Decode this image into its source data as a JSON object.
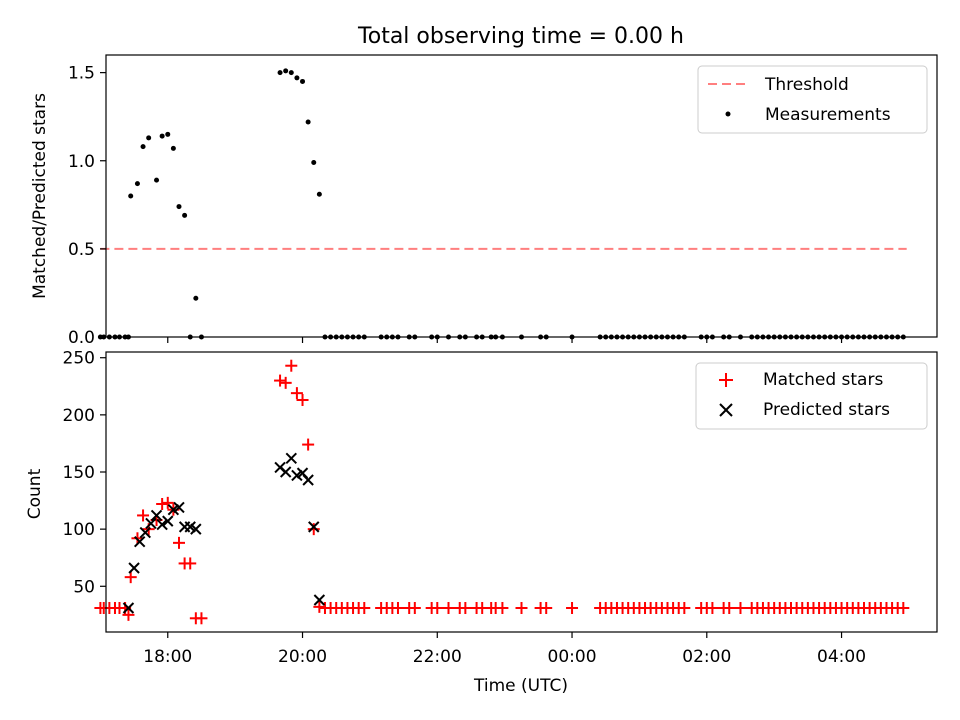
{
  "chart_data": [
    {
      "type": "scatter",
      "title": "Total observing time = 0.00 h",
      "ylabel": "Matched/Predicted stars",
      "xlabel": "",
      "ylim": [
        0,
        1.6
      ],
      "yticks": [
        "0.0",
        "0.5",
        "1.0",
        "1.5"
      ],
      "xlim": [
        "17:05",
        "05:25"
      ],
      "xticks": [
        "18:00",
        "20:00",
        "22:00",
        "00:00",
        "02:00",
        "04:00"
      ],
      "grid": false,
      "legend_position": "top-right",
      "legend": [
        "Threshold",
        "Measurements"
      ],
      "threshold": {
        "name": "Threshold",
        "y": 0.5,
        "x_start": "17:00",
        "x_end": "04:58",
        "style": "dashed",
        "color": "#ff7f7f"
      },
      "series": [
        {
          "name": "Measurements",
          "marker": "dot",
          "color": "#000000",
          "points": [
            [
              "17:00",
              0
            ],
            [
              "17:03",
              0
            ],
            [
              "17:08",
              0
            ],
            [
              "17:13",
              0
            ],
            [
              "17:17",
              0
            ],
            [
              "17:22",
              0
            ],
            [
              "17:25",
              0
            ],
            [
              "17:27",
              0.8
            ],
            [
              "17:33",
              0.87
            ],
            [
              "17:38",
              1.08
            ],
            [
              "17:43",
              1.13
            ],
            [
              "17:50",
              0.89
            ],
            [
              "17:55",
              1.14
            ],
            [
              "18:00",
              1.15
            ],
            [
              "18:05",
              1.07
            ],
            [
              "18:10",
              0.74
            ],
            [
              "18:15",
              0.69
            ],
            [
              "18:20",
              0
            ],
            [
              "18:25",
              0.22
            ],
            [
              "18:30",
              0
            ],
            [
              "19:40",
              1.5
            ],
            [
              "19:45",
              1.51
            ],
            [
              "19:50",
              1.5
            ],
            [
              "19:55",
              1.47
            ],
            [
              "20:00",
              1.45
            ],
            [
              "20:05",
              1.22
            ],
            [
              "20:10",
              0.99
            ],
            [
              "20:15",
              0.81
            ],
            [
              "20:20",
              0
            ],
            [
              "20:25",
              0
            ],
            [
              "20:30",
              0
            ],
            [
              "20:35",
              0
            ],
            [
              "20:40",
              0
            ],
            [
              "20:45",
              0
            ],
            [
              "20:50",
              0
            ],
            [
              "20:55",
              0
            ],
            [
              "21:10",
              0
            ],
            [
              "21:15",
              0
            ],
            [
              "21:20",
              0
            ],
            [
              "21:25",
              0
            ],
            [
              "21:35",
              0
            ],
            [
              "21:40",
              0
            ],
            [
              "21:55",
              0
            ],
            [
              "22:00",
              0
            ],
            [
              "22:10",
              0
            ],
            [
              "22:20",
              0
            ],
            [
              "22:25",
              0
            ],
            [
              "22:35",
              0
            ],
            [
              "22:40",
              0
            ],
            [
              "22:48",
              0
            ],
            [
              "22:52",
              0
            ],
            [
              "22:58",
              0
            ],
            [
              "23:15",
              0
            ],
            [
              "23:32",
              0
            ],
            [
              "23:37",
              0
            ],
            [
              "00:00",
              0
            ],
            [
              "00:25",
              0
            ],
            [
              "00:30",
              0
            ],
            [
              "00:35",
              0
            ],
            [
              "00:40",
              0
            ],
            [
              "00:45",
              0
            ],
            [
              "00:50",
              0
            ],
            [
              "00:55",
              0
            ],
            [
              "01:00",
              0
            ],
            [
              "01:05",
              0
            ],
            [
              "01:10",
              0
            ],
            [
              "01:15",
              0
            ],
            [
              "01:20",
              0
            ],
            [
              "01:25",
              0
            ],
            [
              "01:30",
              0
            ],
            [
              "01:35",
              0
            ],
            [
              "01:40",
              0
            ],
            [
              "01:55",
              0
            ],
            [
              "02:00",
              0
            ],
            [
              "02:05",
              0
            ],
            [
              "02:15",
              0
            ],
            [
              "02:20",
              0
            ],
            [
              "02:30",
              0
            ],
            [
              "02:40",
              0
            ],
            [
              "02:45",
              0
            ],
            [
              "02:50",
              0
            ],
            [
              "02:55",
              0
            ],
            [
              "03:00",
              0
            ],
            [
              "03:05",
              0
            ],
            [
              "03:10",
              0
            ],
            [
              "03:15",
              0
            ],
            [
              "03:20",
              0
            ],
            [
              "03:25",
              0
            ],
            [
              "03:30",
              0
            ],
            [
              "03:35",
              0
            ],
            [
              "03:40",
              0
            ],
            [
              "03:45",
              0
            ],
            [
              "03:50",
              0
            ],
            [
              "03:55",
              0
            ],
            [
              "04:00",
              0
            ],
            [
              "04:05",
              0
            ],
            [
              "04:10",
              0
            ],
            [
              "04:15",
              0
            ],
            [
              "04:20",
              0
            ],
            [
              "04:25",
              0
            ],
            [
              "04:30",
              0
            ],
            [
              "04:35",
              0
            ],
            [
              "04:40",
              0
            ],
            [
              "04:45",
              0
            ],
            [
              "04:50",
              0
            ],
            [
              "04:55",
              0
            ]
          ]
        }
      ]
    },
    {
      "type": "scatter",
      "title": "",
      "ylabel": "Count",
      "xlabel": "Time (UTC)",
      "ylim": [
        10,
        255
      ],
      "yticks": [
        "50",
        "100",
        "150",
        "200",
        "250"
      ],
      "xlim": [
        "17:05",
        "05:25"
      ],
      "xticks": [
        "18:00",
        "20:00",
        "22:00",
        "00:00",
        "02:00",
        "04:00"
      ],
      "grid": false,
      "legend_position": "top-right",
      "legend": [
        "Matched stars",
        "Predicted stars"
      ],
      "series": [
        {
          "name": "Matched stars",
          "marker": "plus",
          "color": "#ff0000",
          "points": [
            [
              "17:00",
              31
            ],
            [
              "17:03",
              31
            ],
            [
              "17:08",
              31
            ],
            [
              "17:13",
              31
            ],
            [
              "17:17",
              31
            ],
            [
              "17:22",
              31
            ],
            [
              "17:25",
              25
            ],
            [
              "17:27",
              58
            ],
            [
              "17:33",
              92
            ],
            [
              "17:38",
              112
            ],
            [
              "17:43",
              100
            ],
            [
              "17:50",
              108
            ],
            [
              "17:55",
              122
            ],
            [
              "18:00",
              123
            ],
            [
              "18:05",
              117
            ],
            [
              "18:10",
              88
            ],
            [
              "18:15",
              70
            ],
            [
              "18:20",
              70
            ],
            [
              "18:25",
              22
            ],
            [
              "18:30",
              22
            ],
            [
              "19:40",
              230
            ],
            [
              "19:45",
              228
            ],
            [
              "19:50",
              243
            ],
            [
              "19:55",
              219
            ],
            [
              "20:00",
              213
            ],
            [
              "20:05",
              174
            ],
            [
              "20:10",
              100
            ],
            [
              "20:15",
              32
            ],
            [
              "20:20",
              31
            ],
            [
              "20:25",
              31
            ],
            [
              "20:30",
              31
            ],
            [
              "20:35",
              31
            ],
            [
              "20:40",
              31
            ],
            [
              "20:45",
              31
            ],
            [
              "20:50",
              31
            ],
            [
              "20:55",
              31
            ],
            [
              "21:10",
              31
            ],
            [
              "21:15",
              31
            ],
            [
              "21:20",
              31
            ],
            [
              "21:25",
              31
            ],
            [
              "21:35",
              31
            ],
            [
              "21:40",
              31
            ],
            [
              "21:55",
              31
            ],
            [
              "22:00",
              31
            ],
            [
              "22:10",
              31
            ],
            [
              "22:20",
              31
            ],
            [
              "22:25",
              31
            ],
            [
              "22:35",
              31
            ],
            [
              "22:40",
              31
            ],
            [
              "22:48",
              31
            ],
            [
              "22:52",
              31
            ],
            [
              "22:58",
              31
            ],
            [
              "23:15",
              31
            ],
            [
              "23:32",
              31
            ],
            [
              "23:37",
              31
            ],
            [
              "00:00",
              31
            ],
            [
              "00:25",
              31
            ],
            [
              "00:30",
              31
            ],
            [
              "00:35",
              31
            ],
            [
              "00:40",
              31
            ],
            [
              "00:45",
              31
            ],
            [
              "00:50",
              31
            ],
            [
              "00:55",
              31
            ],
            [
              "01:00",
              31
            ],
            [
              "01:05",
              31
            ],
            [
              "01:10",
              31
            ],
            [
              "01:15",
              31
            ],
            [
              "01:20",
              31
            ],
            [
              "01:25",
              31
            ],
            [
              "01:30",
              31
            ],
            [
              "01:35",
              31
            ],
            [
              "01:40",
              31
            ],
            [
              "01:55",
              31
            ],
            [
              "02:00",
              31
            ],
            [
              "02:05",
              31
            ],
            [
              "02:15",
              31
            ],
            [
              "02:20",
              31
            ],
            [
              "02:30",
              31
            ],
            [
              "02:40",
              31
            ],
            [
              "02:45",
              31
            ],
            [
              "02:50",
              31
            ],
            [
              "02:55",
              31
            ],
            [
              "03:00",
              31
            ],
            [
              "03:05",
              31
            ],
            [
              "03:10",
              31
            ],
            [
              "03:15",
              31
            ],
            [
              "03:20",
              31
            ],
            [
              "03:25",
              31
            ],
            [
              "03:30",
              31
            ],
            [
              "03:35",
              31
            ],
            [
              "03:40",
              31
            ],
            [
              "03:45",
              31
            ],
            [
              "03:50",
              31
            ],
            [
              "03:55",
              31
            ],
            [
              "04:00",
              31
            ],
            [
              "04:05",
              31
            ],
            [
              "04:10",
              31
            ],
            [
              "04:15",
              31
            ],
            [
              "04:20",
              31
            ],
            [
              "04:25",
              31
            ],
            [
              "04:30",
              31
            ],
            [
              "04:35",
              31
            ],
            [
              "04:40",
              31
            ],
            [
              "04:45",
              31
            ],
            [
              "04:50",
              31
            ],
            [
              "04:55",
              31
            ]
          ]
        },
        {
          "name": "Predicted stars",
          "marker": "x",
          "color": "#000000",
          "points": [
            [
              "17:25",
              31
            ],
            [
              "17:30",
              66
            ],
            [
              "17:35",
              89
            ],
            [
              "17:40",
              97
            ],
            [
              "17:45",
              105
            ],
            [
              "17:50",
              112
            ],
            [
              "17:55",
              104
            ],
            [
              "18:00",
              107
            ],
            [
              "18:05",
              117
            ],
            [
              "18:10",
              119
            ],
            [
              "18:15",
              102
            ],
            [
              "18:20",
              102
            ],
            [
              "18:25",
              100
            ],
            [
              "19:40",
              154
            ],
            [
              "19:45",
              150
            ],
            [
              "19:50",
              162
            ],
            [
              "19:55",
              147
            ],
            [
              "20:00",
              149
            ],
            [
              "20:05",
              143
            ],
            [
              "20:10",
              102
            ],
            [
              "20:15",
              38
            ]
          ]
        }
      ]
    }
  ]
}
